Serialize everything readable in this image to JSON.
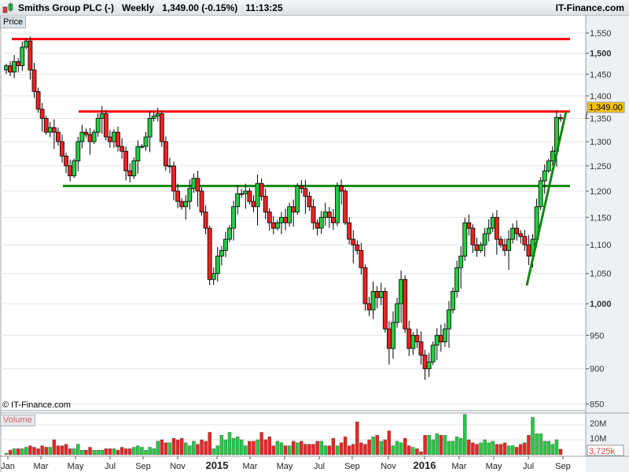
{
  "header": {
    "title": "Smiths Group PLC (-)",
    "period": "Weekly",
    "last": "1,349.00 (-0.15%)",
    "time": "11:13:25",
    "brand": "IT-Finance.com"
  },
  "price_panel_label": "Price",
  "volume_panel_label": "Volume",
  "copyright": "© IT-Finance.com",
  "colors": {
    "up": "#22cc44",
    "down": "#ee2222",
    "resistance": "#ff0000",
    "support": "#118811",
    "grid": "#e4e4e4"
  },
  "chart_data": {
    "type": "candlestick",
    "yscale": "log",
    "ylim": [
      850,
      1560
    ],
    "ytick_labels": [
      "1,550",
      "1,500",
      "1,450",
      "1,400",
      "1,350",
      "1,300",
      "1,250",
      "1,200",
      "1,150",
      "1,100",
      "1,050",
      "1,000",
      "950",
      "900",
      "850"
    ],
    "ytick_values": [
      1550,
      1500,
      1450,
      1400,
      1350,
      1300,
      1250,
      1200,
      1150,
      1100,
      1050,
      1000,
      950,
      900,
      850
    ],
    "last_price_label": "1,349.00",
    "xtick_labels": [
      "Jan",
      "Mar",
      "May",
      "Jul",
      "Sep",
      "Nov",
      "2015",
      "Mar",
      "May",
      "Jul",
      "Sep",
      "Nov",
      "2016",
      "Mar",
      "May",
      "Jul",
      "Sep"
    ],
    "horizontal_lines": [
      {
        "price": 1535,
        "color": "red"
      },
      {
        "price": 1365,
        "color": "red"
      },
      {
        "price": 1210,
        "color": "green"
      }
    ],
    "trend_line": {
      "from_price": 1030,
      "to_price": 1365,
      "color": "green"
    },
    "close": [
      1470,
      1455,
      1480,
      1470,
      1515,
      1530,
      1460,
      1410,
      1370,
      1350,
      1320,
      1330,
      1320,
      1300,
      1270,
      1250,
      1230,
      1260,
      1300,
      1320,
      1315,
      1300,
      1320,
      1350,
      1360,
      1310,
      1300,
      1320,
      1290,
      1280,
      1240,
      1230,
      1260,
      1290,
      1290,
      1310,
      1350,
      1355,
      1360,
      1300,
      1250,
      1250,
      1200,
      1180,
      1170,
      1180,
      1205,
      1225,
      1200,
      1160,
      1130,
      1040,
      1050,
      1080,
      1090,
      1110,
      1130,
      1170,
      1195,
      1195,
      1200,
      1180,
      1170,
      1215,
      1190,
      1160,
      1140,
      1130,
      1140,
      1150,
      1140,
      1170,
      1160,
      1210,
      1205,
      1190,
      1170,
      1140,
      1130,
      1150,
      1160,
      1150,
      1140,
      1210,
      1200,
      1140,
      1110,
      1100,
      1090,
      1060,
      1000,
      990,
      1020,
      1010,
      1020,
      960,
      930,
      970,
      1000,
      1040,
      960,
      930,
      950,
      940,
      920,
      900,
      910,
      935,
      950,
      940,
      960,
      990,
      1020,
      1060,
      1080,
      1140,
      1130,
      1100,
      1090,
      1100,
      1120,
      1130,
      1150,
      1110,
      1100,
      1090,
      1110,
      1130,
      1120,
      1115,
      1100,
      1080,
      1110,
      1170,
      1220,
      1240,
      1260,
      1280,
      1352,
      1349
    ],
    "volume_ylim_millions": [
      0,
      30
    ],
    "volume_tick_labels": [
      "20M",
      "10M"
    ],
    "volume_last_label": "3,725k",
    "volume_millions": [
      1,
      3,
      4,
      4,
      4,
      5,
      6,
      5,
      4,
      6,
      5,
      5,
      10,
      6,
      6,
      7,
      4,
      4,
      7,
      3,
      3,
      5,
      3,
      3,
      3,
      4,
      4,
      4,
      3,
      5,
      4,
      4,
      5,
      6,
      5,
      3,
      5,
      4,
      9,
      10,
      8,
      8,
      11,
      10,
      11,
      8,
      6,
      9,
      7,
      10,
      9,
      15,
      4,
      6,
      13,
      10,
      15,
      11,
      12,
      10,
      6,
      9,
      9,
      10,
      15,
      10,
      12,
      6,
      9,
      8,
      6,
      6,
      9,
      8,
      9,
      7,
      7,
      7,
      9,
      9,
      6,
      6,
      11,
      6,
      8,
      12,
      6,
      7,
      22,
      8,
      7,
      10,
      12,
      13,
      9,
      10,
      16,
      6,
      9,
      8,
      11,
      6,
      5,
      4,
      2,
      13,
      13,
      10,
      14,
      13,
      13,
      9,
      9,
      12,
      11,
      27,
      10,
      8,
      7,
      8,
      10,
      8,
      9,
      7,
      7,
      8,
      6,
      6,
      5,
      7,
      8,
      13,
      25,
      14,
      14,
      9,
      9,
      7,
      10,
      3.725
    ]
  }
}
